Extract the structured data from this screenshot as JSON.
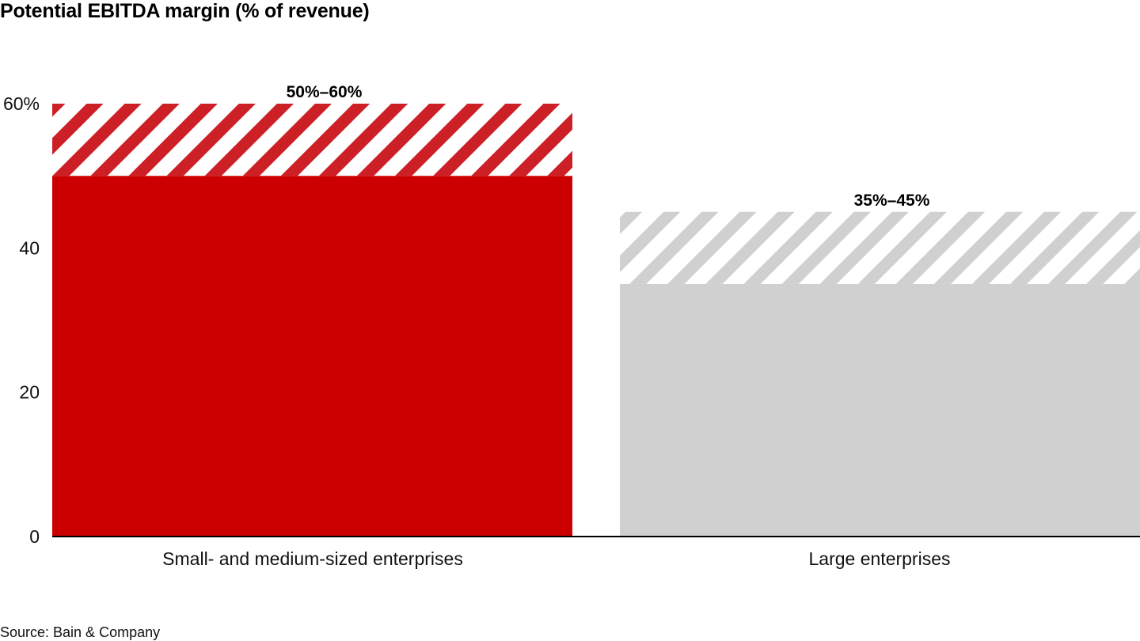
{
  "title": "Potential EBITDA margin (% of revenue)",
  "source": "Source: Bain & Company",
  "chart_data": {
    "type": "bar",
    "title": "Potential EBITDA margin (% of revenue)",
    "categories": [
      "Small- and medium-sized enterprises",
      "Large enterprises"
    ],
    "series": [
      {
        "values": [
          50,
          35
        ]
      },
      {
        "values": [
          10,
          10
        ]
      }
    ],
    "ranges": [
      [
        50,
        60
      ],
      [
        35,
        45
      ]
    ],
    "range_labels": [
      "50%–60%",
      "35%–45%"
    ],
    "colors": {
      "sme_solid": "#cc0000",
      "sme_hatch": "#cc1f26",
      "large_solid": "#d0d0d0",
      "large_hatch": "#d0d0d0",
      "axis": "#000000"
    },
    "yticks": [
      {
        "value": 0,
        "label": "0"
      },
      {
        "value": 20,
        "label": "20"
      },
      {
        "value": 40,
        "label": "40"
      },
      {
        "value": 60,
        "label": "60%"
      }
    ],
    "ylim": [
      0,
      60
    ],
    "grid": false,
    "legend": "none"
  }
}
